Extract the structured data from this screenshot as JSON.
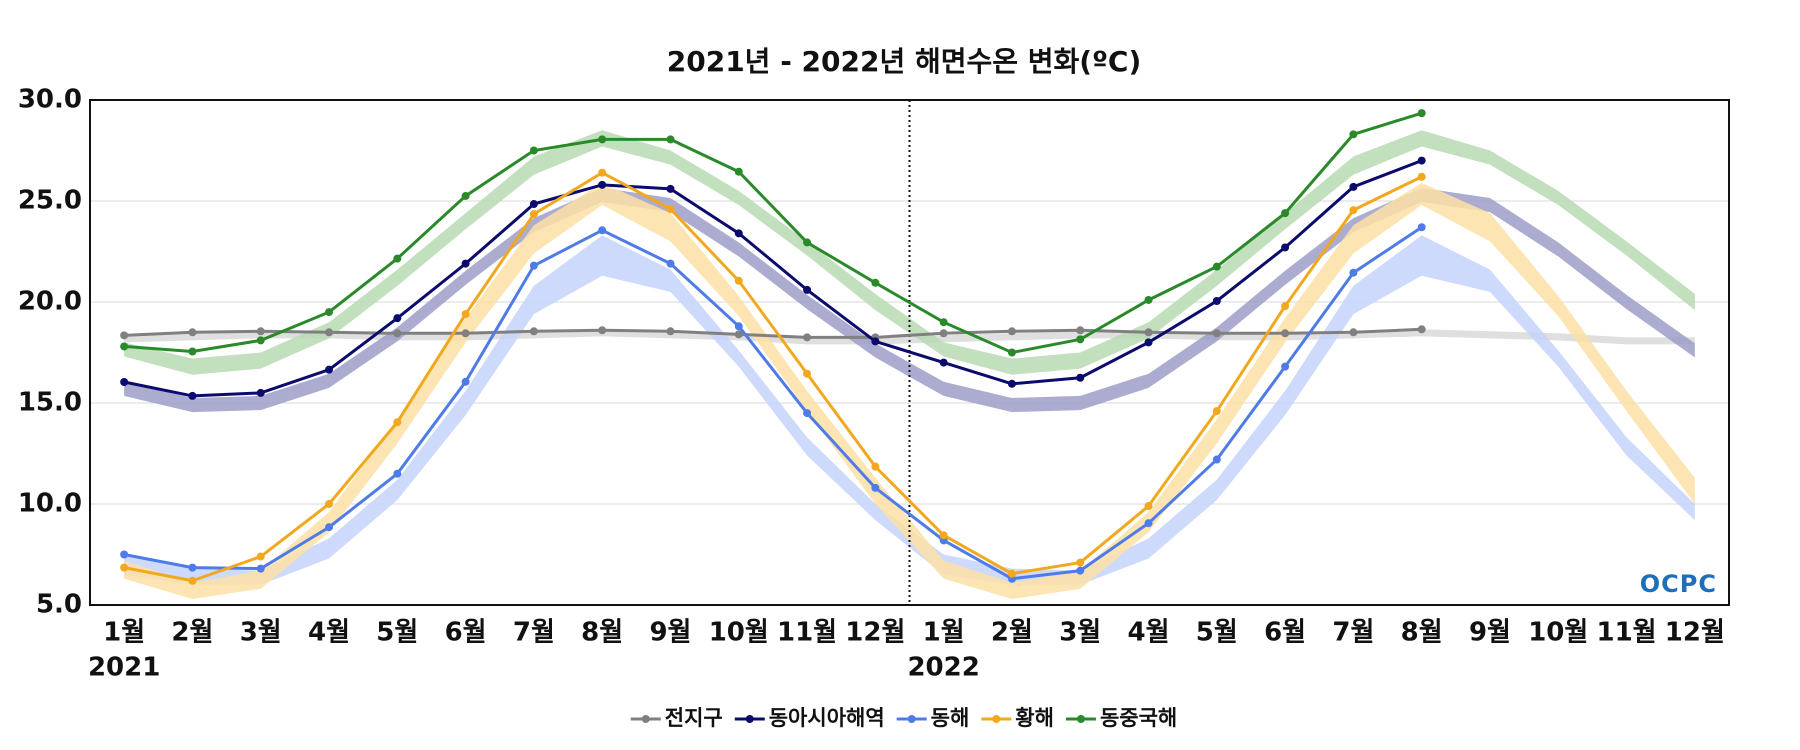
{
  "chart_data": {
    "type": "line",
    "title": "2021년 - 2022년 해면수온 변화(ºC)",
    "categories": [
      "1월",
      "2월",
      "3월",
      "4월",
      "5월",
      "6월",
      "7월",
      "8월",
      "9월",
      "10월",
      "11월",
      "12월",
      "1월",
      "2월",
      "3월",
      "4월",
      "5월",
      "6월",
      "7월",
      "8월",
      "9월",
      "10월",
      "11월",
      "12월"
    ],
    "year_labels": [
      "2021",
      "2022"
    ],
    "ylim": [
      5,
      30
    ],
    "yticks": [
      {
        "value": 5,
        "label": "5.0"
      },
      {
        "value": 10,
        "label": "10.0"
      },
      {
        "value": 15,
        "label": "15.0"
      },
      {
        "value": 20,
        "label": "20.0"
      },
      {
        "value": 25,
        "label": "25.0"
      },
      {
        "value": 30,
        "label": "30.0"
      }
    ],
    "grid": true,
    "legend": "bottom",
    "logo": "OCPC",
    "series": [
      {
        "name": "전지구",
        "color": "#808080",
        "values": [
          18.35,
          18.5,
          18.55,
          18.5,
          18.45,
          18.45,
          18.55,
          18.6,
          18.55,
          18.4,
          18.25,
          18.25,
          18.45,
          18.55,
          18.6,
          18.5,
          18.45,
          18.45,
          18.5,
          18.65,
          null,
          null,
          null,
          null
        ]
      },
      {
        "name": "동아시아해역",
        "color": "#0b0b6e",
        "values": [
          16.04,
          15.35,
          15.5,
          16.65,
          19.2,
          21.9,
          24.85,
          25.8,
          25.6,
          23.4,
          20.6,
          18.05,
          17.0,
          15.95,
          16.25,
          18.0,
          20.05,
          22.7,
          25.7,
          27.0,
          null,
          null,
          null,
          null
        ]
      },
      {
        "name": "동해",
        "color": "#4f7be8",
        "values": [
          7.5,
          6.85,
          6.8,
          8.85,
          11.5,
          16.05,
          21.8,
          23.55,
          21.9,
          18.8,
          14.5,
          10.8,
          8.2,
          6.3,
          6.7,
          9.05,
          12.2,
          16.8,
          21.45,
          23.7,
          null,
          null,
          null,
          null
        ]
      },
      {
        "name": "황해",
        "color": "#f2a81d",
        "values": [
          6.85,
          6.2,
          7.4,
          10.0,
          14.05,
          19.4,
          24.35,
          26.4,
          24.6,
          21.05,
          16.45,
          11.85,
          8.45,
          6.55,
          7.1,
          9.9,
          14.6,
          19.8,
          24.55,
          26.2,
          null,
          null,
          null,
          null
        ]
      },
      {
        "name": "동중국해",
        "color": "#2a8a2a",
        "values": [
          17.8,
          17.55,
          18.1,
          19.5,
          22.15,
          25.25,
          27.5,
          28.05,
          28.05,
          26.45,
          22.95,
          20.95,
          19.0,
          17.5,
          18.15,
          20.1,
          21.75,
          24.4,
          28.3,
          29.35,
          null,
          null,
          null,
          null
        ]
      }
    ],
    "bands": [
      {
        "color": "#d9d9d9",
        "lower": [
          18.0,
          18.1,
          18.2,
          18.2,
          18.1,
          18.1,
          18.2,
          18.3,
          18.2,
          18.1,
          17.9,
          17.9,
          18.0,
          18.1,
          18.2,
          18.2,
          18.1,
          18.1,
          18.2,
          18.3,
          18.2,
          18.1,
          17.9,
          17.9
        ],
        "upper": [
          18.35,
          18.45,
          18.55,
          18.55,
          18.45,
          18.45,
          18.55,
          18.65,
          18.55,
          18.45,
          18.25,
          18.25,
          18.35,
          18.45,
          18.55,
          18.55,
          18.45,
          18.45,
          18.55,
          18.65,
          18.55,
          18.45,
          18.25,
          18.25
        ]
      },
      {
        "color": "#9e9ec8",
        "lower": [
          15.35,
          14.55,
          14.65,
          15.75,
          18.05,
          20.85,
          23.45,
          24.95,
          24.45,
          22.25,
          19.65,
          17.25,
          15.35,
          14.55,
          14.65,
          15.75,
          18.05,
          20.85,
          23.45,
          24.95,
          24.45,
          22.25,
          19.65,
          17.25
        ],
        "upper": [
          16.05,
          15.25,
          15.35,
          16.45,
          18.75,
          21.55,
          24.15,
          25.65,
          25.15,
          22.95,
          20.35,
          17.95,
          16.05,
          15.25,
          15.35,
          16.45,
          18.75,
          21.55,
          24.15,
          25.65,
          25.15,
          22.95,
          20.35,
          17.95
        ]
      },
      {
        "color": "#c4d3fb",
        "lower": [
          6.5,
          6.0,
          6.0,
          7.3,
          10.2,
          14.4,
          19.4,
          21.3,
          20.5,
          16.8,
          12.4,
          9.2,
          6.5,
          6.0,
          6.0,
          7.3,
          10.2,
          14.4,
          19.4,
          21.3,
          20.5,
          16.8,
          12.4,
          9.2
        ],
        "upper": [
          7.5,
          6.8,
          6.7,
          8.3,
          11.2,
          15.6,
          20.8,
          23.3,
          21.6,
          17.6,
          13.3,
          10.0,
          7.5,
          6.8,
          6.7,
          8.3,
          11.2,
          15.6,
          20.8,
          23.3,
          21.6,
          17.6,
          13.3,
          10.0
        ]
      },
      {
        "color": "#fde0a6",
        "lower": [
          6.3,
          5.3,
          5.8,
          8.6,
          13.0,
          18.0,
          22.4,
          24.8,
          23.0,
          19.3,
          14.6,
          10.0,
          6.3,
          5.3,
          5.8,
          8.6,
          13.0,
          18.0,
          22.4,
          24.8,
          23.0,
          19.3,
          14.6,
          10.0
        ],
        "upper": [
          7.2,
          6.1,
          6.7,
          9.6,
          14.2,
          19.2,
          23.8,
          25.9,
          24.4,
          20.3,
          15.6,
          11.3,
          7.2,
          6.1,
          6.7,
          9.6,
          14.2,
          19.2,
          23.8,
          25.9,
          24.4,
          20.3,
          15.6,
          11.3
        ]
      },
      {
        "color": "#b7dbb3",
        "lower": [
          17.3,
          16.4,
          16.7,
          18.2,
          20.8,
          23.6,
          26.3,
          27.7,
          26.8,
          24.8,
          22.3,
          19.6,
          17.3,
          16.4,
          16.7,
          18.2,
          20.8,
          23.6,
          26.3,
          27.7,
          26.8,
          24.8,
          22.3,
          19.6
        ],
        "upper": [
          18.0,
          17.2,
          17.5,
          19.0,
          21.6,
          24.4,
          27.2,
          28.5,
          27.5,
          25.5,
          23.0,
          20.4,
          18.0,
          17.2,
          17.5,
          19.0,
          21.6,
          24.4,
          27.2,
          28.5,
          27.5,
          25.5,
          23.0,
          20.4
        ]
      }
    ]
  }
}
